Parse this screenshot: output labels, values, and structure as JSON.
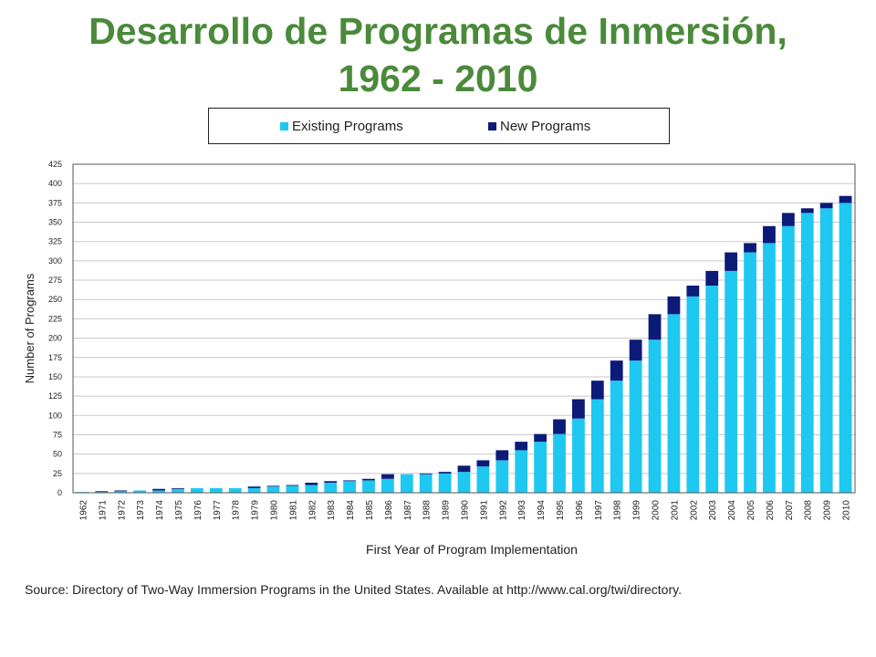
{
  "title": {
    "line1": "Desarrollo de Programas de Inmersión,",
    "line2": "1962 - 2010"
  },
  "colors": {
    "title": "#4a8a3a",
    "existing": "#1ec8f0",
    "new": "#0c1a78",
    "grid": "#c8c8c8"
  },
  "source": "Source: Directory of Two-Way Immersion Programs in the United States.  Available at http://www.cal.org/twi/directory.",
  "chart_data": {
    "type": "bar",
    "stacked": true,
    "xlabel": "First Year of Program Implementation",
    "ylabel": "Number of Programs",
    "ylim": [
      0,
      425
    ],
    "yticks": [
      0,
      25,
      50,
      75,
      100,
      125,
      150,
      175,
      200,
      225,
      250,
      275,
      300,
      325,
      350,
      375,
      400,
      425
    ],
    "grid": true,
    "legend_position": "top",
    "categories": [
      "1962",
      "1971",
      "1972",
      "1973",
      "1974",
      "1975",
      "1976",
      "1977",
      "1978",
      "1979",
      "1980",
      "1981",
      "1982",
      "1983",
      "1984",
      "1985",
      "1986",
      "1987",
      "1988",
      "1989",
      "1990",
      "1991",
      "1992",
      "1993",
      "1994",
      "1995",
      "1996",
      "1997",
      "1998",
      "1999",
      "2000",
      "2001",
      "2002",
      "2003",
      "2004",
      "2005",
      "2006",
      "2007",
      "2008",
      "2009",
      "2010"
    ],
    "series": [
      {
        "name": "Existing Programs",
        "values": [
          1,
          1,
          2,
          3,
          3,
          5,
          6,
          6,
          6,
          6,
          8,
          9,
          10,
          13,
          15,
          16,
          18,
          24,
          24,
          25,
          27,
          34,
          42,
          55,
          66,
          76,
          96,
          121,
          145,
          171,
          198,
          231,
          254,
          268,
          287,
          311,
          323,
          345,
          362,
          368,
          375
        ]
      },
      {
        "name": "New Programs",
        "values": [
          0,
          1,
          1,
          0,
          2,
          1,
          0,
          0,
          0,
          2,
          1,
          1,
          3,
          2,
          1,
          2,
          6,
          0,
          1,
          2,
          8,
          8,
          13,
          11,
          10,
          19,
          25,
          24,
          26,
          27,
          33,
          23,
          14,
          19,
          24,
          12,
          22,
          17,
          6,
          7,
          9
        ]
      }
    ]
  }
}
